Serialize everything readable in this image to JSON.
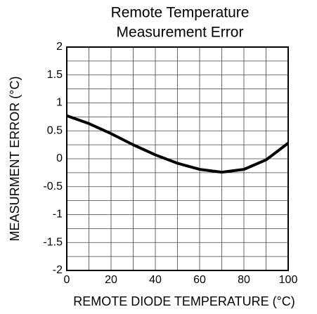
{
  "chart_data": {
    "type": "line",
    "title": [
      "Remote Temperature",
      "Measurement Error"
    ],
    "xlabel": "REMOTE DIODE TEMPERATURE (°C)",
    "ylabel": "MEASURMENT ERROR (°C)",
    "x": [
      0,
      10,
      20,
      30,
      40,
      50,
      60,
      70,
      80,
      90,
      100
    ],
    "series": [
      {
        "color": "#000000",
        "values": [
          0.77,
          0.63,
          0.45,
          0.25,
          0.07,
          -0.08,
          -0.19,
          -0.24,
          -0.19,
          -0.02,
          0.28
        ]
      }
    ],
    "xlim": [
      0,
      100
    ],
    "xticks": [
      0,
      20,
      40,
      60,
      80,
      100
    ],
    "ylim": [
      -2,
      2
    ],
    "yticks": [
      -2,
      -1.5,
      -1,
      -0.5,
      0,
      0.5,
      1,
      1.5,
      2
    ],
    "grid": true
  }
}
